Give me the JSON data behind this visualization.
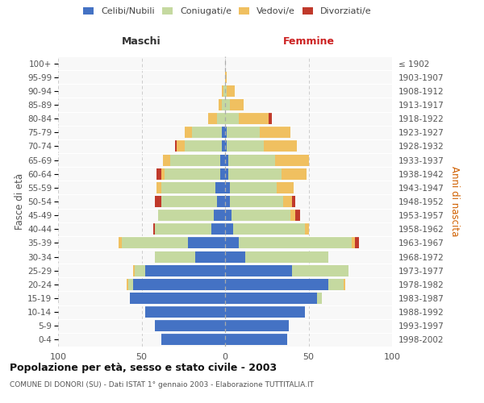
{
  "age_groups": [
    "0-4",
    "5-9",
    "10-14",
    "15-19",
    "20-24",
    "25-29",
    "30-34",
    "35-39",
    "40-44",
    "45-49",
    "50-54",
    "55-59",
    "60-64",
    "65-69",
    "70-74",
    "75-79",
    "80-84",
    "85-89",
    "90-94",
    "95-99",
    "100+"
  ],
  "anni_nascita": [
    "1998-2002",
    "1993-1997",
    "1988-1992",
    "1983-1987",
    "1978-1982",
    "1973-1977",
    "1968-1972",
    "1963-1967",
    "1958-1962",
    "1953-1957",
    "1948-1952",
    "1943-1947",
    "1938-1942",
    "1933-1937",
    "1928-1932",
    "1923-1927",
    "1918-1922",
    "1913-1917",
    "1908-1912",
    "1903-1907",
    "≤ 1902"
  ],
  "maschi": {
    "celibi": [
      38,
      42,
      48,
      57,
      55,
      48,
      18,
      22,
      8,
      7,
      5,
      6,
      3,
      3,
      2,
      2,
      0,
      0,
      0,
      0,
      0
    ],
    "coniugati": [
      0,
      0,
      0,
      0,
      3,
      6,
      24,
      40,
      34,
      33,
      33,
      32,
      33,
      30,
      22,
      18,
      5,
      2,
      1,
      0,
      0
    ],
    "vedovi": [
      0,
      0,
      0,
      0,
      1,
      1,
      0,
      2,
      0,
      0,
      0,
      3,
      2,
      4,
      5,
      4,
      5,
      2,
      1,
      0,
      0
    ],
    "divorziati": [
      0,
      0,
      0,
      0,
      0,
      0,
      0,
      0,
      1,
      0,
      4,
      0,
      3,
      0,
      1,
      0,
      0,
      0,
      0,
      0,
      0
    ]
  },
  "femmine": {
    "nubili": [
      37,
      38,
      48,
      55,
      62,
      40,
      12,
      8,
      5,
      4,
      3,
      3,
      2,
      2,
      1,
      1,
      0,
      0,
      0,
      0,
      0
    ],
    "coniugate": [
      0,
      0,
      0,
      3,
      9,
      34,
      50,
      68,
      43,
      35,
      32,
      28,
      32,
      28,
      22,
      20,
      8,
      3,
      1,
      0,
      0
    ],
    "vedove": [
      0,
      0,
      0,
      0,
      1,
      0,
      0,
      2,
      2,
      3,
      5,
      10,
      15,
      20,
      20,
      18,
      18,
      8,
      5,
      1,
      0
    ],
    "divorziate": [
      0,
      0,
      0,
      0,
      0,
      0,
      0,
      2,
      0,
      3,
      2,
      0,
      0,
      0,
      0,
      0,
      2,
      0,
      0,
      0,
      0
    ]
  },
  "color_celibi": "#4472c4",
  "color_coniugati": "#c5d9a0",
  "color_vedovi": "#f0c060",
  "color_divorziati": "#c0392b",
  "xlim": 100,
  "title": "Popolazione per età, sesso e stato civile - 2003",
  "subtitle": "COMUNE DI DONORI (SU) - Dati ISTAT 1° gennaio 2003 - Elaborazione TUTTITALIA.IT",
  "ylabel_left": "Fasce di età",
  "ylabel_right": "Anni di nascita",
  "header_maschi": "Maschi",
  "header_femmine": "Femmine",
  "bg_color": "#ffffff",
  "plot_bg": "#f8f8f8",
  "grid_color": "#cccccc"
}
